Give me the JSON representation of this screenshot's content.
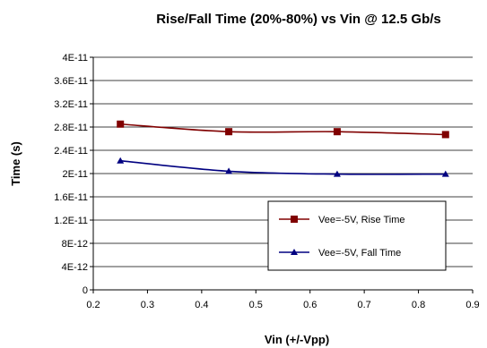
{
  "chart_data": {
    "type": "line",
    "title": "Rise/Fall Time (20%-80%) vs Vin @ 12.5 Gb/s",
    "xlabel": "Vin (+/-Vpp)",
    "ylabel": "Time (s)",
    "xlim": [
      0.2,
      0.9
    ],
    "ylim": [
      0,
      4e-11
    ],
    "x_ticks": [
      "0.2",
      "0.3",
      "0.4",
      "0.5",
      "0.6",
      "0.7",
      "0.8",
      "0.9"
    ],
    "y_ticks": [
      "0",
      "4E-12",
      "8E-12",
      "1.2E-11",
      "1.6E-11",
      "2E-11",
      "2.4E-11",
      "2.8E-11",
      "3.2E-11",
      "3.6E-11",
      "4E-11"
    ],
    "grid": "horizontal",
    "legend_position": "bottom-right",
    "series": [
      {
        "name": "Vee=-5V, Rise Time",
        "color": "#800000",
        "marker": "square",
        "x": [
          0.25,
          0.45,
          0.65,
          0.85
        ],
        "y": [
          2.85e-11,
          2.72e-11,
          2.72e-11,
          2.67e-11
        ]
      },
      {
        "name": "Vee=-5V, Fall Time",
        "color": "#000080",
        "marker": "triangle",
        "x": [
          0.25,
          0.45,
          0.65,
          0.85
        ],
        "y": [
          2.22e-11,
          2.04e-11,
          1.99e-11,
          1.99e-11
        ]
      }
    ]
  }
}
